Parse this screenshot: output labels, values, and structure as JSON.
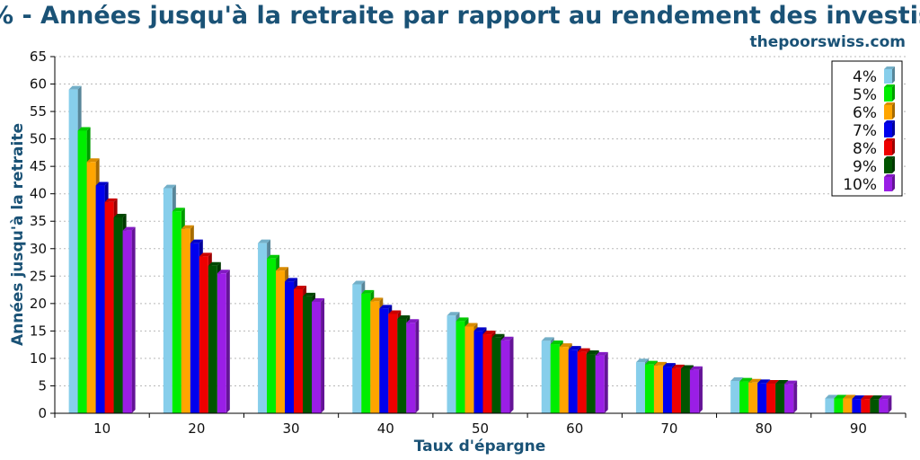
{
  "chart_data": {
    "type": "bar",
    "title": "% - Années jusqu'à la retraite par rapport au rendement des investissements",
    "source": "thepoorswiss.com",
    "xlabel": "Taux d'épargne",
    "ylabel": "Années jusqu'à la retraite",
    "ylim": [
      0,
      65
    ],
    "yticks": [
      "0",
      "5",
      "10",
      "15",
      "20",
      "25",
      "30",
      "35",
      "40",
      "45",
      "50",
      "55",
      "60",
      "65"
    ],
    "categories": [
      "10",
      "20",
      "30",
      "40",
      "50",
      "60",
      "70",
      "80",
      "90"
    ],
    "grid": true,
    "legend_position": "top-right",
    "series": [
      {
        "name": "4%",
        "color": "#87ceeb",
        "values": [
          59,
          41,
          31,
          23.5,
          17.8,
          13.2,
          9.3,
          5.9,
          2.7
        ]
      },
      {
        "name": "5%",
        "color": "#00ee00",
        "values": [
          51.5,
          36.8,
          28.2,
          21.8,
          16.8,
          12.6,
          8.9,
          5.8,
          2.7
        ]
      },
      {
        "name": "6%",
        "color": "#ffa500",
        "values": [
          45.8,
          33.6,
          26,
          20.4,
          15.8,
          12.1,
          8.7,
          5.6,
          2.7
        ]
      },
      {
        "name": "7%",
        "color": "#0000ee",
        "values": [
          41.5,
          31,
          24,
          19.1,
          15,
          11.6,
          8.5,
          5.5,
          2.6
        ]
      },
      {
        "name": "8%",
        "color": "#ee0000",
        "values": [
          38.5,
          28.6,
          22.6,
          18.1,
          14.4,
          11.2,
          8.2,
          5.4,
          2.6
        ]
      },
      {
        "name": "9%",
        "color": "#005500",
        "values": [
          35.7,
          26.9,
          21.3,
          17.2,
          13.8,
          10.8,
          8.1,
          5.4,
          2.6
        ]
      },
      {
        "name": "10%",
        "color": "#9a1ee6",
        "values": [
          33.3,
          25.5,
          20.3,
          16.5,
          13.3,
          10.5,
          7.9,
          5.3,
          2.6
        ]
      }
    ]
  }
}
